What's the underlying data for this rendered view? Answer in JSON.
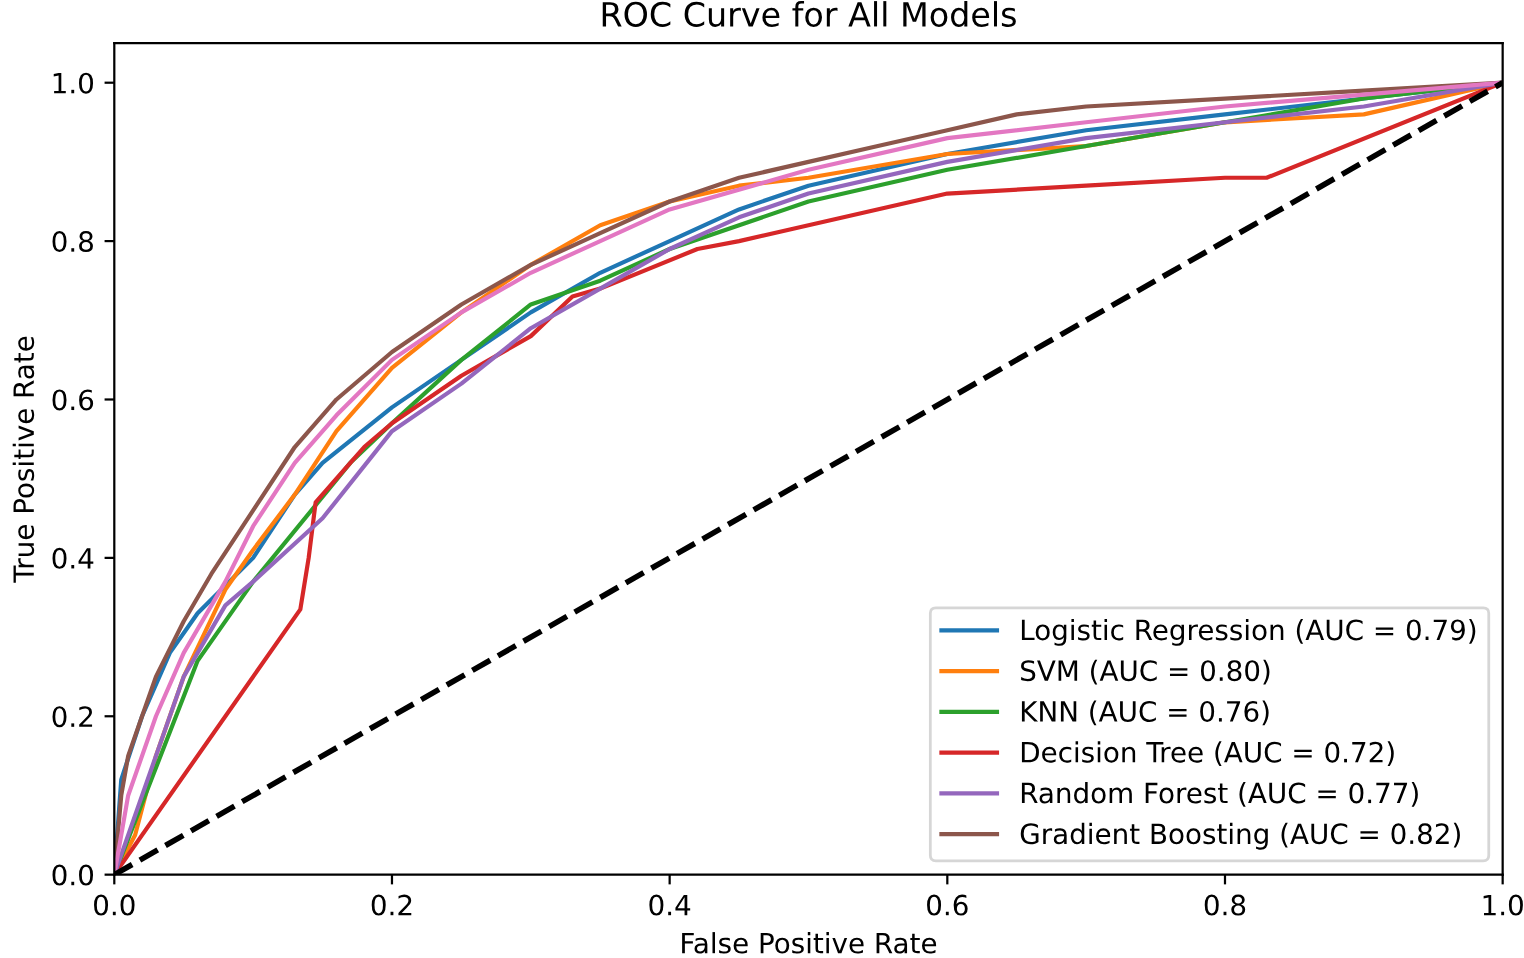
{
  "chart_data": {
    "type": "line",
    "title": "ROC Curve for All Models",
    "xlabel": "False Positive Rate",
    "ylabel": "True Positive Rate",
    "xlim": [
      0,
      1
    ],
    "ylim": [
      0,
      1.05
    ],
    "xticks": [
      {
        "value": 0,
        "label": "0.0"
      },
      {
        "value": 0.2,
        "label": "0.2"
      },
      {
        "value": 0.4,
        "label": "0.4"
      },
      {
        "value": 0.6,
        "label": "0.6"
      },
      {
        "value": 0.8,
        "label": "0.8"
      },
      {
        "value": 1,
        "label": "1.0"
      }
    ],
    "yticks": [
      {
        "value": 0,
        "label": "0.0"
      },
      {
        "value": 0.2,
        "label": "0.2"
      },
      {
        "value": 0.4,
        "label": "0.4"
      },
      {
        "value": 0.6,
        "label": "0.6"
      },
      {
        "value": 0.8,
        "label": "0.8"
      },
      {
        "value": 1,
        "label": "1.0"
      }
    ],
    "grid": false,
    "legend": "bottom right",
    "marker": "none",
    "series": [
      {
        "name": "Logistic Regression (AUC = 0.79)",
        "color": "#1f77b4",
        "x": [
          0,
          0.005,
          0.02,
          0.04,
          0.06,
          0.1,
          0.13,
          0.15,
          0.2,
          0.25,
          0.3,
          0.35,
          0.4,
          0.45,
          0.5,
          0.6,
          0.7,
          0.8,
          0.9,
          1
        ],
        "values": [
          0,
          0.12,
          0.2,
          0.28,
          0.33,
          0.4,
          0.48,
          0.52,
          0.59,
          0.65,
          0.71,
          0.76,
          0.8,
          0.84,
          0.87,
          0.91,
          0.94,
          0.96,
          0.98,
          1
        ]
      },
      {
        "name": "SVM (AUC = 0.80)",
        "color": "#ff7f0e",
        "x": [
          0,
          0.015,
          0.03,
          0.05,
          0.08,
          0.1,
          0.13,
          0.16,
          0.2,
          0.25,
          0.3,
          0.35,
          0.4,
          0.45,
          0.5,
          0.6,
          0.7,
          0.8,
          0.9,
          1
        ],
        "values": [
          0,
          0.05,
          0.15,
          0.25,
          0.36,
          0.41,
          0.48,
          0.56,
          0.64,
          0.71,
          0.77,
          0.82,
          0.85,
          0.87,
          0.88,
          0.91,
          0.92,
          0.95,
          0.96,
          1
        ]
      },
      {
        "name": "KNN (AUC = 0.76)",
        "color": "#2ca02c",
        "x": [
          0,
          0.06,
          0.1,
          0.17,
          0.2,
          0.25,
          0.3,
          0.35,
          0.4,
          0.5,
          0.6,
          0.7,
          0.8,
          0.9,
          1
        ],
        "values": [
          0,
          0.27,
          0.37,
          0.52,
          0.57,
          0.65,
          0.72,
          0.75,
          0.79,
          0.85,
          0.89,
          0.92,
          0.95,
          0.98,
          1
        ]
      },
      {
        "name": "Decision Tree (AUC = 0.72)",
        "color": "#d62728",
        "x": [
          0,
          0.134,
          0.14,
          0.145,
          0.16,
          0.18,
          0.2,
          0.25,
          0.3,
          0.33,
          0.35,
          0.42,
          0.45,
          0.5,
          0.6,
          0.7,
          0.8,
          0.83,
          1
        ],
        "values": [
          0,
          0.335,
          0.4,
          0.47,
          0.5,
          0.54,
          0.57,
          0.63,
          0.68,
          0.73,
          0.74,
          0.79,
          0.8,
          0.82,
          0.86,
          0.87,
          0.88,
          0.88,
          1
        ]
      },
      {
        "name": "Random Forest (AUC = 0.77)",
        "color": "#9467bd",
        "x": [
          0,
          0.03,
          0.05,
          0.08,
          0.1,
          0.15,
          0.2,
          0.25,
          0.3,
          0.35,
          0.4,
          0.45,
          0.5,
          0.6,
          0.7,
          0.8,
          0.9,
          1
        ],
        "values": [
          0,
          0.15,
          0.25,
          0.34,
          0.37,
          0.45,
          0.56,
          0.62,
          0.69,
          0.74,
          0.79,
          0.83,
          0.86,
          0.9,
          0.93,
          0.95,
          0.97,
          1
        ]
      },
      {
        "name": "Gradient Boosting (AUC = 0.82)",
        "color": "#8c564b",
        "x": [
          0,
          0.005,
          0.01,
          0.02,
          0.03,
          0.05,
          0.07,
          0.1,
          0.13,
          0.16,
          0.2,
          0.25,
          0.3,
          0.35,
          0.4,
          0.45,
          0.5,
          0.55,
          0.6,
          0.65,
          0.7,
          0.8,
          0.9,
          1
        ],
        "values": [
          0,
          0.1,
          0.15,
          0.2,
          0.25,
          0.32,
          0.38,
          0.46,
          0.54,
          0.6,
          0.66,
          0.72,
          0.77,
          0.81,
          0.85,
          0.88,
          0.9,
          0.92,
          0.94,
          0.96,
          0.97,
          0.98,
          0.99,
          1
        ]
      },
      {
        "color": "#e377c2",
        "x": [
          0,
          0.01,
          0.03,
          0.05,
          0.08,
          0.1,
          0.13,
          0.16,
          0.2,
          0.25,
          0.3,
          0.35,
          0.4,
          0.5,
          0.6,
          0.7,
          0.8,
          0.9,
          1
        ],
        "values": [
          0,
          0.1,
          0.2,
          0.28,
          0.37,
          0.44,
          0.52,
          0.58,
          0.65,
          0.71,
          0.76,
          0.8,
          0.84,
          0.89,
          0.93,
          0.95,
          0.97,
          0.985,
          1
        ]
      },
      {
        "color": "#000000",
        "line_style": "dashed",
        "x": [
          0,
          1
        ],
        "values": [
          0,
          1
        ]
      }
    ]
  }
}
